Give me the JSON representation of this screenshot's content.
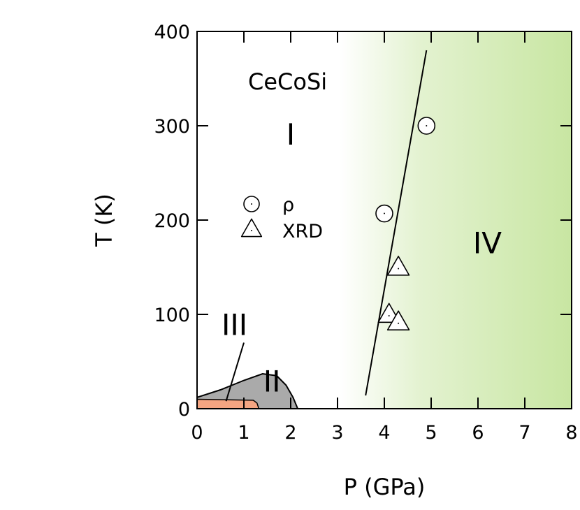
{
  "chart_data": {
    "type": "scatter",
    "title": "",
    "compound_label": "CeCoSi",
    "xlabel": "P (GPa)",
    "ylabel": "T (K)",
    "xlim": [
      0,
      8
    ],
    "ylim": [
      0,
      400
    ],
    "x_ticks": [
      0,
      1,
      2,
      3,
      4,
      5,
      6,
      7,
      8
    ],
    "y_ticks": [
      0,
      100,
      200,
      300,
      400
    ],
    "grid": false,
    "legend_placement": "center-left",
    "series": [
      {
        "name": "ρ",
        "marker": "circle",
        "x": [
          4.9,
          4.0
        ],
        "y": [
          300,
          207
        ]
      },
      {
        "name": "XRD",
        "marker": "triangle",
        "x": [
          4.3,
          4.1,
          4.3
        ],
        "y": [
          150,
          100,
          92
        ]
      }
    ],
    "phases": [
      {
        "label": "I",
        "x": 2.0,
        "y": 280
      },
      {
        "label": "II",
        "x": 1.6,
        "y": 18
      },
      {
        "label": "III",
        "x": 0.8,
        "y": 78
      },
      {
        "label": "IV",
        "x": 6.2,
        "y": 165
      }
    ],
    "boundary_line": {
      "x": [
        3.6,
        4.9
      ],
      "y": [
        14,
        380
      ]
    },
    "phase_II_region": {
      "x": [
        0,
        0.5,
        1.0,
        1.4,
        1.7,
        1.9,
        2.05,
        2.15
      ],
      "y": [
        12,
        20,
        30,
        37,
        35,
        25,
        12,
        0
      ]
    },
    "phase_III_region": {
      "x": [
        0,
        1.2,
        1.28,
        1.32
      ],
      "y": [
        10,
        9,
        6,
        0
      ]
    },
    "phase_III_pointer": {
      "from": [
        1.0,
        70
      ],
      "to": [
        0.62,
        8
      ]
    },
    "colors": {
      "phase_II": "#aaaaaa",
      "phase_III": "#f4a582",
      "phase_IV": "#c8e6a2"
    }
  }
}
